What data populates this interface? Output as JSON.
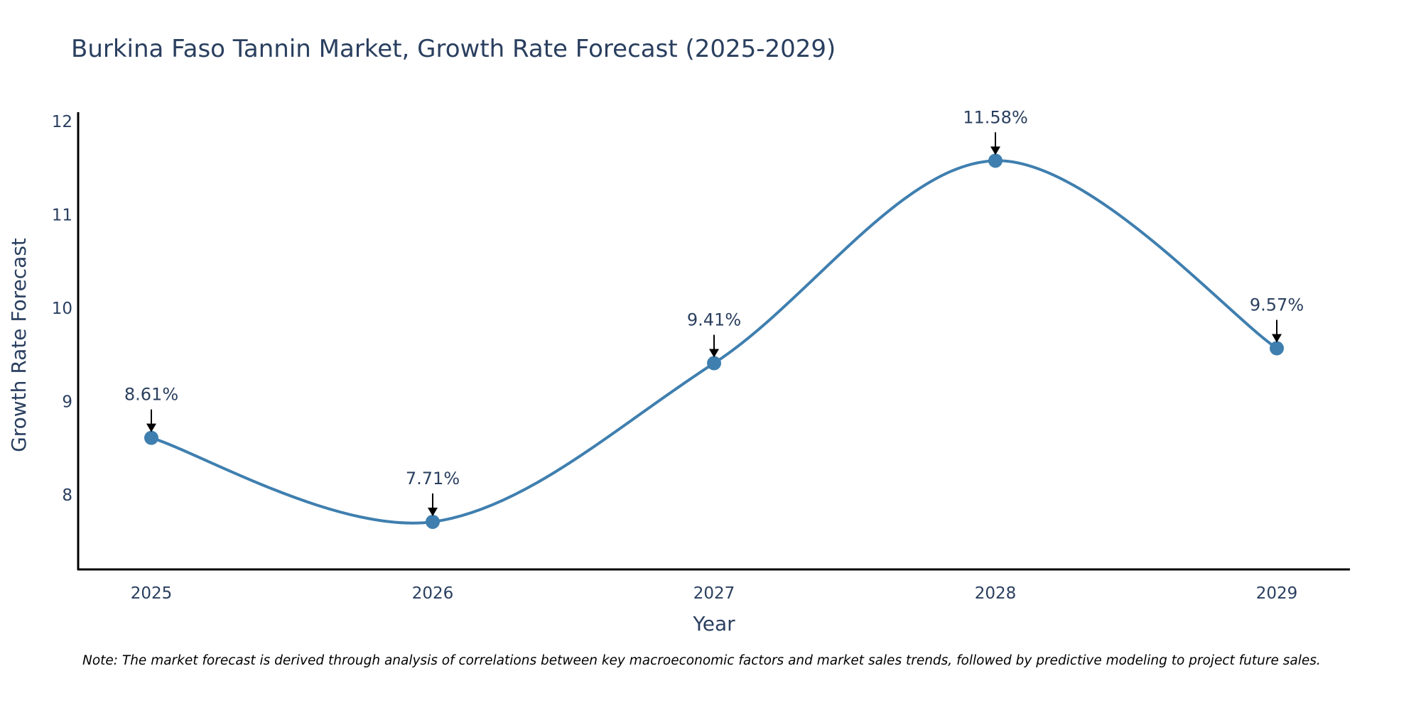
{
  "chart_data": {
    "type": "line",
    "title": "Burkina Faso Tannin Market, Growth Rate Forecast (2025-2029)",
    "xlabel": "Year",
    "ylabel": "Growth Rate Forecast",
    "categories": [
      "2025",
      "2026",
      "2027",
      "2028",
      "2029"
    ],
    "series": [
      {
        "name": "Growth Rate Forecast",
        "values": [
          8.61,
          7.71,
          9.41,
          11.58,
          9.57
        ],
        "labels": [
          "8.61%",
          "7.71%",
          "9.41%",
          "11.58%",
          "9.57%"
        ]
      }
    ],
    "yticks": [
      8,
      9,
      10,
      11,
      12
    ],
    "ylim": [
      7.2,
      12.1
    ],
    "line_shape": "spline",
    "grid": false,
    "colors": {
      "line": "#3f7faf",
      "marker": "#3f7faf",
      "axis": "#000000",
      "arrow": "#000000",
      "text": "#2a3f5f"
    }
  },
  "note": "Note: The market forecast is derived through analysis of correlations between key macroeconomic factors and market sales trends, followed by predictive modeling to project future sales."
}
